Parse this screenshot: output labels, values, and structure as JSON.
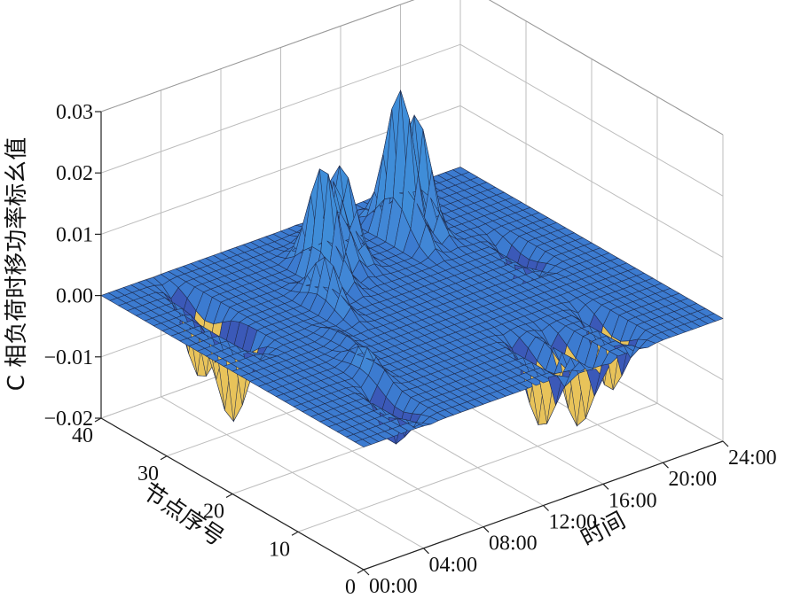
{
  "chart_data": {
    "type": "surface3d",
    "zlabel": "C 相负荷时移功率标幺值",
    "xlabel": "时间",
    "ylabel": "节点序号",
    "x_ticks": [
      "00:00",
      "04:00",
      "08:00",
      "12:00",
      "16:00",
      "20:00",
      "24:00"
    ],
    "y_ticks": [
      "0",
      "10",
      "20",
      "30",
      "40"
    ],
    "z_ticks": [
      "−0.02",
      "−0.01",
      "0.00",
      "0.01",
      "0.02",
      "0.03"
    ],
    "xlim": [
      0,
      24
    ],
    "ylim": [
      0,
      40
    ],
    "zlim": [
      -0.02,
      0.03
    ],
    "grid": true,
    "base_value": 0.0,
    "features": [
      {
        "time": 4.5,
        "node": 6,
        "value": -0.007
      },
      {
        "time": 5.5,
        "node": 12,
        "value": 0.004
      },
      {
        "time": 6.5,
        "node": 18,
        "value": 0.002
      },
      {
        "time": 8.5,
        "node": 25,
        "value": 0.008
      },
      {
        "time": 10.5,
        "node": 30,
        "value": 0.018
      },
      {
        "time": 12.0,
        "node": 32,
        "value": 0.013
      },
      {
        "time": 13.0,
        "node": 33,
        "value": 0.014
      },
      {
        "time": 16.5,
        "node": 32,
        "value": 0.024
      },
      {
        "time": 18.0,
        "node": 33,
        "value": 0.018
      },
      {
        "time": 14.0,
        "node": 5,
        "value": -0.012
      },
      {
        "time": 16.0,
        "node": 4,
        "value": -0.013
      },
      {
        "time": 19.0,
        "node": 6,
        "value": -0.011
      },
      {
        "time": 3.0,
        "node": 27,
        "value": -0.015
      },
      {
        "time": 3.5,
        "node": 33,
        "value": -0.012
      },
      {
        "time": 20.5,
        "node": 23,
        "value": -0.006
      }
    ]
  }
}
